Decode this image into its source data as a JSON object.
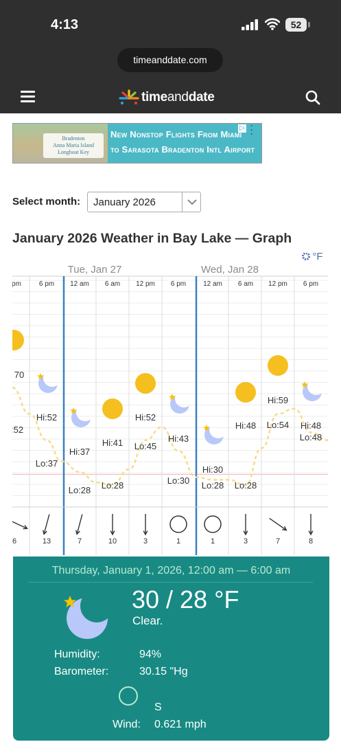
{
  "status_bar": {
    "time": "4:13",
    "battery": "52"
  },
  "browser": {
    "url": "timeanddate.com"
  },
  "header": {
    "logo_part1": "time",
    "logo_part2": "and",
    "logo_part3": "date"
  },
  "ad": {
    "badge_text": [
      "Bradenton",
      "Anna Maria Island",
      "Longboat Key"
    ],
    "headline_1": "New Nonstop Flights From Miami",
    "headline_2": "to Sarasota Bradenton Intl Airport"
  },
  "month_select": {
    "label": "Select month:",
    "value": "January 2026"
  },
  "page_title": "January 2026 Weather in Bay Lake — Graph",
  "graph": {
    "units_label": "°F",
    "day_labels": [
      "Tue, Jan 27",
      "Wed, Jan 28"
    ],
    "time_labels": [
      "pm",
      "6 pm",
      "12 am",
      "6 am",
      "12 pm",
      "6 pm",
      "12 am",
      "6 am",
      "12 pm",
      "6 pm"
    ],
    "columns": [
      {
        "icon": "sun",
        "temp_label": "70",
        "temp": 70,
        "wind_speed": "6",
        "wind_dir": "ese"
      },
      {
        "icon": "moon",
        "temp_label": "Hi:52",
        "temp": 52,
        "low_label": "Lo:37",
        "low": 37,
        "wind_speed": "13",
        "wind_dir": "ssw"
      },
      {
        "icon": "moon",
        "temp_label": "Hi:37",
        "temp": 37,
        "low_label": "Lo:28",
        "low": 28,
        "wind_speed": "7",
        "wind_dir": "ssw"
      },
      {
        "icon": "sun",
        "temp_label": "Hi:41",
        "temp": 41,
        "low_label": "Lo:28",
        "low": 28,
        "wind_speed": "10",
        "wind_dir": "s"
      },
      {
        "icon": "sun",
        "temp_label": "Hi:52",
        "temp": 52,
        "low_label": "Lo:45",
        "low": 45,
        "wind_speed": "3",
        "wind_dir": "s"
      },
      {
        "icon": "moon",
        "temp_label": "Hi:43",
        "temp": 43,
        "low_label": "Lo:30",
        "low": 30,
        "wind_speed": "1",
        "wind_dir": "calm"
      },
      {
        "icon": "moon",
        "temp_label": "Hi:30",
        "temp": 30,
        "low_label": "Lo:28",
        "low": 28,
        "wind_speed": "1",
        "wind_dir": "calm"
      },
      {
        "icon": "sun",
        "temp_label": "Hi:48",
        "temp": 48,
        "low_label": "Lo:28",
        "low": 28,
        "wind_speed": "3",
        "wind_dir": "s"
      },
      {
        "icon": "sun",
        "temp_label": "Hi:59",
        "temp": 59,
        "low_label": "Lo:54",
        "low": 54,
        "wind_speed": "7",
        "wind_dir": "se"
      },
      {
        "icon": "moon",
        "temp_label": "Hi:48",
        "temp": 48,
        "low_label": "Lo:48",
        "low": 48,
        "wind_speed": "8",
        "wind_dir": "e"
      }
    ],
    "left_edge_label": ":52",
    "freezing_line": 32
  },
  "forecast": {
    "title": "Thursday, January 1, 2026, 12:00 am — 6:00 am",
    "temperature": "30 / 28 °F",
    "description": "Clear.",
    "humidity_label": "Humidity:",
    "humidity_value": "94%",
    "barometer_label": "Barometer:",
    "barometer_value": "30.15 \"Hg",
    "wind_dir": "S",
    "wind_label": "Wind:",
    "wind_value": "0.621 mph",
    "icon": "moon-with-star"
  }
}
